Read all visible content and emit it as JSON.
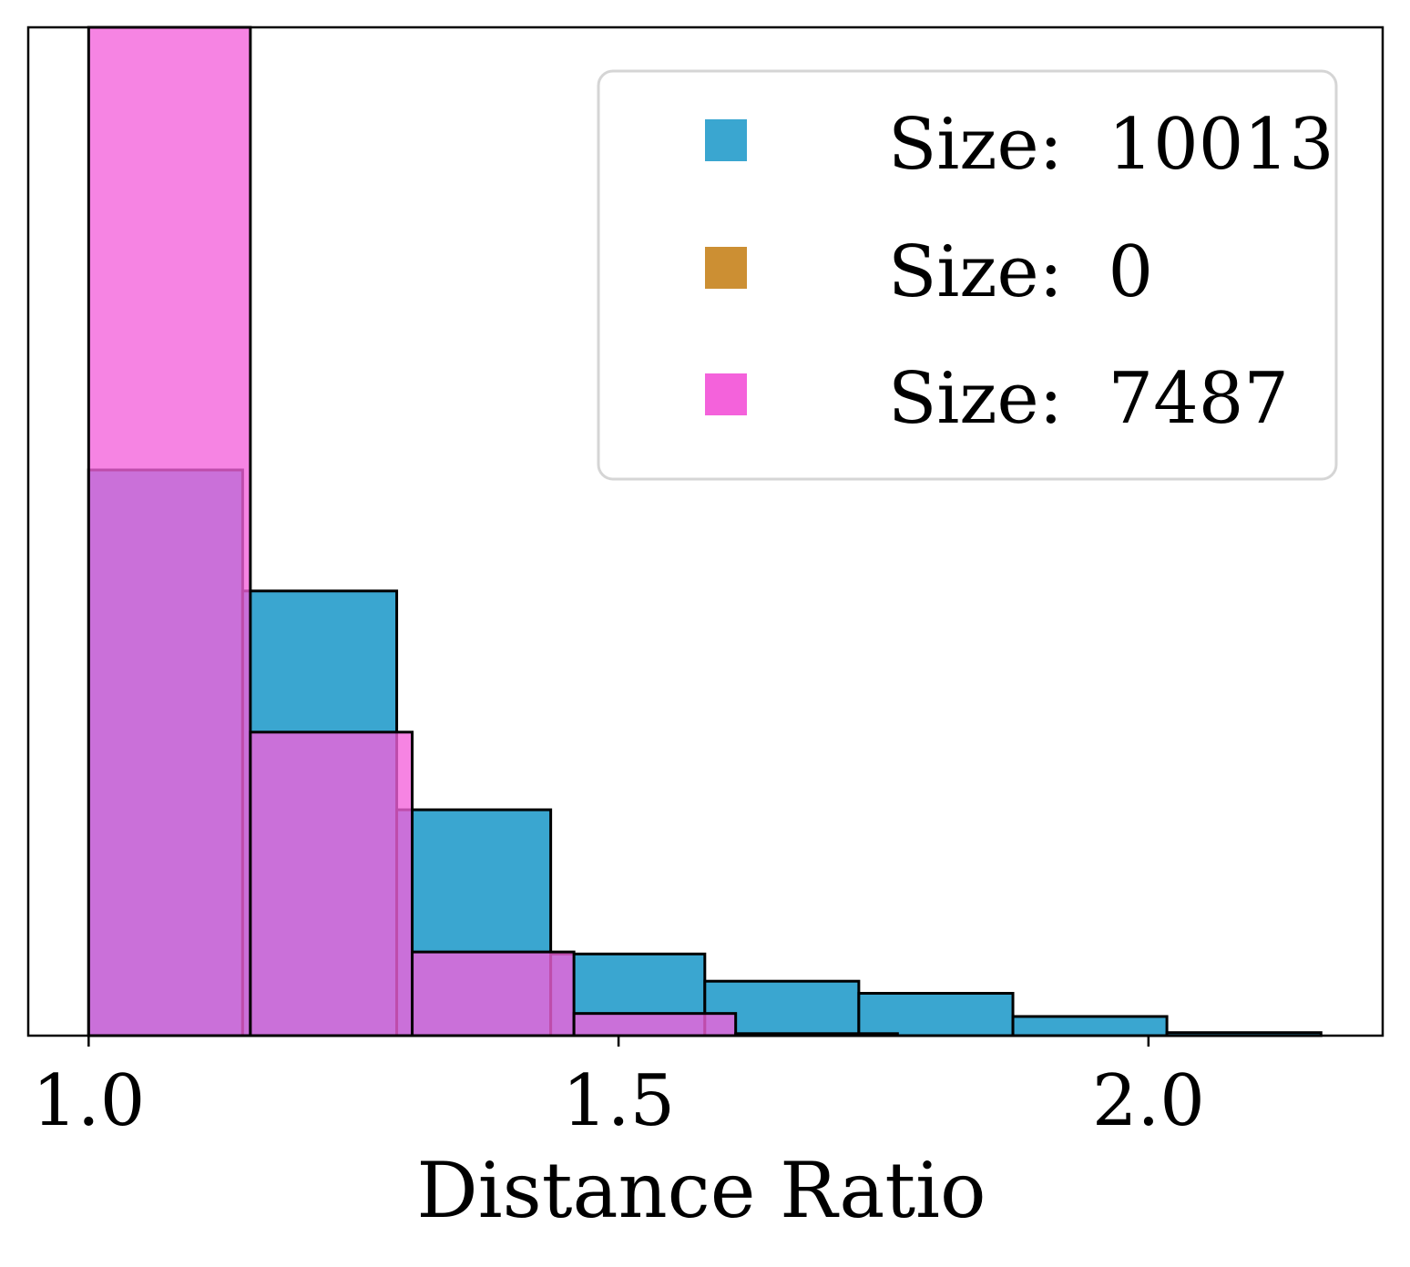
{
  "chart_data": {
    "type": "histogram",
    "xlabel": "Distance Ratio",
    "ylabel": "",
    "xlim": [
      0.943,
      2.221
    ],
    "ylim": [
      0,
      1
    ],
    "x_ticks": [
      {
        "value": 1.0,
        "label": "1.0"
      },
      {
        "value": 1.5,
        "label": "1.5"
      },
      {
        "value": 2.0,
        "label": "2.0"
      }
    ],
    "grid": false,
    "legend": {
      "placement": "upper-right",
      "entries": [
        {
          "label": "Size:  10013",
          "color": "#3aa6d0"
        },
        {
          "label": "Size:  0",
          "color": "#cc8f33"
        },
        {
          "label": "Size:  7487",
          "color": "#f462db"
        }
      ]
    },
    "series": [
      {
        "name": "Size:  10013",
        "color": "#3aa6d0",
        "opacity": 1.0,
        "bins": [
          {
            "x0": 1.0,
            "x1": 1.1453,
            "value": 0.561
          },
          {
            "x0": 1.1453,
            "x1": 1.2907,
            "value": 0.441
          },
          {
            "x0": 1.2907,
            "x1": 1.436,
            "value": 0.224
          },
          {
            "x0": 1.436,
            "x1": 1.5814,
            "value": 0.081
          },
          {
            "x0": 1.5814,
            "x1": 1.7267,
            "value": 0.054
          },
          {
            "x0": 1.7267,
            "x1": 1.8721,
            "value": 0.042
          },
          {
            "x0": 1.8721,
            "x1": 2.0174,
            "value": 0.019
          },
          {
            "x0": 2.0174,
            "x1": 2.1628,
            "value": 0.003
          }
        ]
      },
      {
        "name": "Size:  7487",
        "color": "#f462db",
        "opacity": 0.78,
        "bins": [
          {
            "x0": 1.0,
            "x1": 1.1526,
            "value": 1.0
          },
          {
            "x0": 1.1526,
            "x1": 1.3053,
            "value": 0.301
          },
          {
            "x0": 1.3053,
            "x1": 1.4579,
            "value": 0.083
          },
          {
            "x0": 1.4579,
            "x1": 1.6105,
            "value": 0.022
          },
          {
            "x0": 1.6105,
            "x1": 1.7632,
            "value": 0.002
          }
        ]
      }
    ]
  }
}
